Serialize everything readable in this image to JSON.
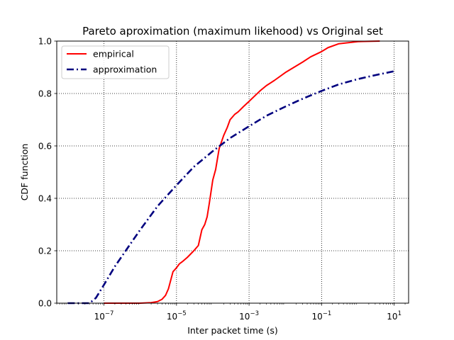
{
  "chart_data": {
    "type": "line",
    "title": "Pareto aproximation (maximum likehood) vs Original set",
    "xlabel": "Inter packet time (s)",
    "ylabel": "CDF function",
    "xscale": "log",
    "xlim": [
      5e-09,
      25
    ],
    "ylim": [
      0,
      1.0
    ],
    "grid": true,
    "legend_position": "top-left",
    "x_ticks": [
      {
        "value": 1e-07,
        "base": "10",
        "exp": "−7"
      },
      {
        "value": 1e-05,
        "base": "10",
        "exp": "−5"
      },
      {
        "value": 0.001,
        "base": "10",
        "exp": "−3"
      },
      {
        "value": 0.1,
        "base": "10",
        "exp": "−1"
      },
      {
        "value": 10,
        "base": "10",
        "exp": "1"
      }
    ],
    "y_ticks": [
      {
        "value": 0.0,
        "label": "0.0"
      },
      {
        "value": 0.2,
        "label": "0.2"
      },
      {
        "value": 0.4,
        "label": "0.4"
      },
      {
        "value": 0.6,
        "label": "0.6"
      },
      {
        "value": 0.8,
        "label": "0.8"
      },
      {
        "value": 1.0,
        "label": "1.0"
      }
    ],
    "series": [
      {
        "name": "empirical",
        "color": "#ff0000",
        "style": "solid",
        "x": [
          1e-07,
          1e-06,
          2e-06,
          3e-06,
          4e-06,
          5e-06,
          6e-06,
          7e-06,
          8e-06,
          1e-05,
          1.2e-05,
          1.5e-05,
          2e-05,
          3e-05,
          4e-05,
          5e-05,
          6e-05,
          7e-05,
          8e-05,
          0.0001,
          0.00012,
          0.00015,
          0.0002,
          0.00025,
          0.0003,
          0.0004,
          0.0005,
          0.0007,
          0.001,
          0.002,
          0.003,
          0.005,
          0.01,
          0.03,
          0.05,
          0.1,
          0.15,
          0.3,
          1,
          4
        ],
        "y": [
          0.0,
          0.0,
          0.002,
          0.006,
          0.015,
          0.03,
          0.055,
          0.09,
          0.12,
          0.135,
          0.15,
          0.16,
          0.175,
          0.2,
          0.22,
          0.28,
          0.3,
          0.33,
          0.38,
          0.47,
          0.51,
          0.59,
          0.64,
          0.67,
          0.7,
          0.72,
          0.73,
          0.75,
          0.77,
          0.81,
          0.83,
          0.85,
          0.88,
          0.92,
          0.94,
          0.96,
          0.975,
          0.99,
          0.998,
          1.0
        ]
      },
      {
        "name": "approximation",
        "color": "#00007f",
        "style": "dashdot",
        "x": [
          1e-08,
          3e-08,
          4e-08,
          6e-08,
          1e-07,
          2e-07,
          5e-07,
          1e-06,
          3e-06,
          1e-05,
          3e-05,
          0.0001,
          0.0003,
          0.001,
          0.003,
          0.01,
          0.03,
          0.1,
          0.3,
          1,
          3,
          10
        ],
        "y": [
          0.0,
          0.0,
          0.0,
          0.02,
          0.07,
          0.14,
          0.22,
          0.28,
          0.37,
          0.45,
          0.52,
          0.58,
          0.63,
          0.675,
          0.715,
          0.75,
          0.78,
          0.81,
          0.835,
          0.855,
          0.87,
          0.885
        ]
      }
    ]
  }
}
